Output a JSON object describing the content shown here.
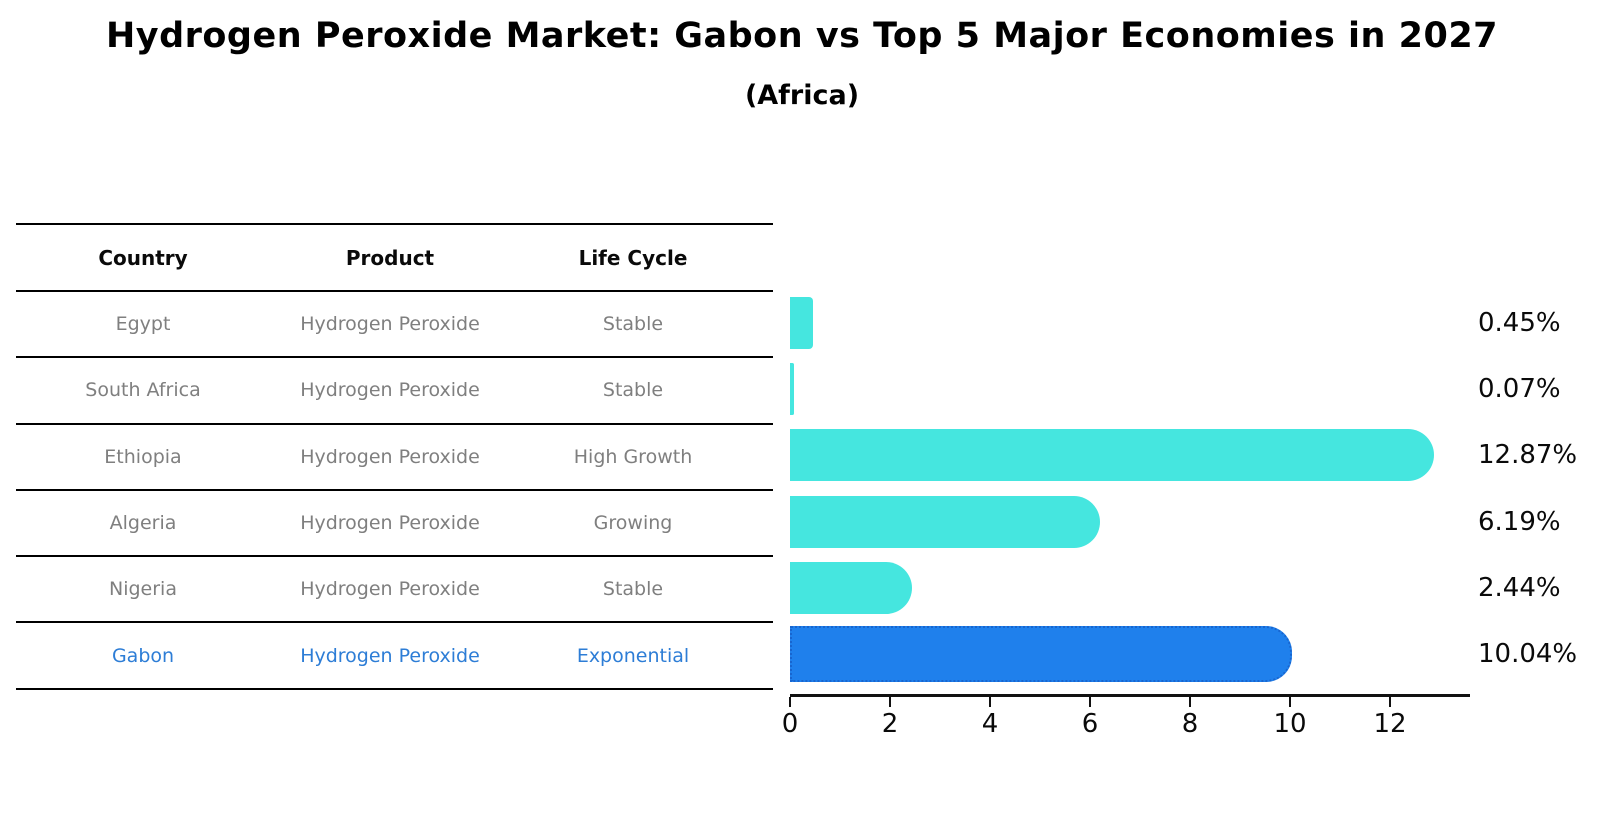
{
  "title": "Hydrogen Peroxide Market: Gabon vs Top 5 Major Economies in 2027",
  "subtitle": "(Africa)",
  "table": {
    "headers": {
      "country": "Country",
      "product": "Product",
      "life_cycle": "Life Cycle"
    },
    "rows": [
      {
        "country": "Egypt",
        "product": "Hydrogen Peroxide",
        "life_cycle": "Stable",
        "highlighted": false
      },
      {
        "country": "South Africa",
        "product": "Hydrogen Peroxide",
        "life_cycle": "Stable",
        "highlighted": false
      },
      {
        "country": "Ethiopia",
        "product": "Hydrogen Peroxide",
        "life_cycle": "High Growth",
        "highlighted": false
      },
      {
        "country": "Algeria",
        "product": "Hydrogen Peroxide",
        "life_cycle": "Growing",
        "highlighted": false
      },
      {
        "country": "Nigeria",
        "product": "Hydrogen Peroxide",
        "life_cycle": "Stable",
        "highlighted": false
      },
      {
        "country": "Gabon",
        "product": "Hydrogen Peroxide",
        "life_cycle": "Exponential",
        "highlighted": true
      }
    ]
  },
  "chart_data": {
    "type": "bar",
    "orientation": "horizontal",
    "title": "Hydrogen Peroxide Market: Gabon vs Top 5 Major Economies in 2027",
    "subtitle": "(Africa)",
    "categories": [
      "Egypt",
      "South Africa",
      "Ethiopia",
      "Algeria",
      "Nigeria",
      "Gabon"
    ],
    "values": [
      0.45,
      0.07,
      12.87,
      6.19,
      2.44,
      10.04
    ],
    "value_labels": [
      "0.45%",
      "0.07%",
      "12.87%",
      "6.19%",
      "2.44%",
      "10.04%"
    ],
    "unit": "percent",
    "xlim": [
      0,
      13.6
    ],
    "x_ticks": [
      0,
      2,
      4,
      6,
      8,
      10,
      12
    ],
    "grid": false,
    "legend": false,
    "bar_color": "#45e6df",
    "highlight_index": 5,
    "highlight_color": "#1f80ec",
    "highlight_border_color": "#1865cf",
    "highlight_text_color": "#2d7dd6"
  }
}
